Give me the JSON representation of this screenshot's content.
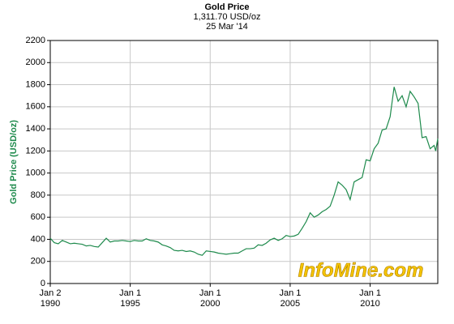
{
  "chart_data": {
    "type": "line",
    "title": "Gold Price",
    "subtitle": "1,311.70 USD/oz",
    "date": "25 Mar '14",
    "y_label": "Gold Price (USD/oz)",
    "watermark": "InfoMine.com",
    "x": [
      1990,
      1990.25,
      1990.5,
      1990.75,
      1991,
      1991.25,
      1991.5,
      1991.75,
      1992,
      1992.25,
      1992.5,
      1992.75,
      1993,
      1993.25,
      1993.5,
      1993.75,
      1994,
      1994.25,
      1994.5,
      1994.75,
      1995,
      1995.25,
      1995.5,
      1995.75,
      1996,
      1996.25,
      1996.5,
      1996.75,
      1997,
      1997.25,
      1997.5,
      1997.75,
      1998,
      1998.25,
      1998.5,
      1998.75,
      1999,
      1999.25,
      1999.5,
      1999.75,
      2000,
      2000.25,
      2000.5,
      2000.75,
      2001,
      2001.25,
      2001.5,
      2001.75,
      2002,
      2002.25,
      2002.5,
      2002.75,
      2003,
      2003.25,
      2003.5,
      2003.75,
      2004,
      2004.25,
      2004.5,
      2004.75,
      2005,
      2005.25,
      2005.5,
      2005.75,
      2006,
      2006.25,
      2006.5,
      2006.75,
      2007,
      2007.25,
      2007.5,
      2007.75,
      2008,
      2008.25,
      2008.5,
      2008.75,
      2009,
      2009.25,
      2009.5,
      2009.75,
      2010,
      2010.25,
      2010.5,
      2010.75,
      2011,
      2011.25,
      2011.5,
      2011.75,
      2012,
      2012.25,
      2012.5,
      2012.75,
      2013,
      2013.25,
      2013.5,
      2013.75,
      2014,
      2014.1,
      2014.23
    ],
    "series": [
      {
        "name": "Gold Price",
        "color": "#1e8a4c",
        "values": [
          410,
          370,
          360,
          390,
          375,
          360,
          365,
          360,
          355,
          340,
          345,
          335,
          330,
          370,
          410,
          375,
          385,
          385,
          390,
          385,
          380,
          390,
          385,
          385,
          405,
          390,
          385,
          375,
          350,
          340,
          325,
          300,
          295,
          300,
          290,
          295,
          285,
          265,
          255,
          295,
          290,
          285,
          275,
          270,
          265,
          270,
          275,
          275,
          295,
          315,
          315,
          320,
          350,
          345,
          365,
          395,
          410,
          390,
          405,
          435,
          425,
          430,
          445,
          500,
          560,
          640,
          600,
          620,
          650,
          670,
          700,
          800,
          920,
          890,
          850,
          760,
          920,
          940,
          960,
          1120,
          1110,
          1220,
          1270,
          1390,
          1400,
          1510,
          1780,
          1650,
          1700,
          1600,
          1740,
          1690,
          1630,
          1320,
          1330,
          1220,
          1250,
          1200,
          1311.7
        ]
      }
    ],
    "xlim": [
      1990,
      2014.23
    ],
    "xticks": [
      {
        "value": 1990,
        "label": [
          "Jan 2",
          "1990"
        ]
      },
      {
        "value": 1995,
        "label": [
          "Jan 1",
          "1995"
        ]
      },
      {
        "value": 2000,
        "label": [
          "Jan 1",
          "2000"
        ]
      },
      {
        "value": 2005,
        "label": [
          "Jan 1",
          "2005"
        ]
      },
      {
        "value": 2010,
        "label": [
          "Jan 1",
          "2010"
        ]
      }
    ],
    "ylim": [
      0,
      2200
    ],
    "yticks": [
      0,
      200,
      400,
      600,
      800,
      1000,
      1200,
      1400,
      1600,
      1800,
      2000,
      2200
    ],
    "grid": true
  }
}
